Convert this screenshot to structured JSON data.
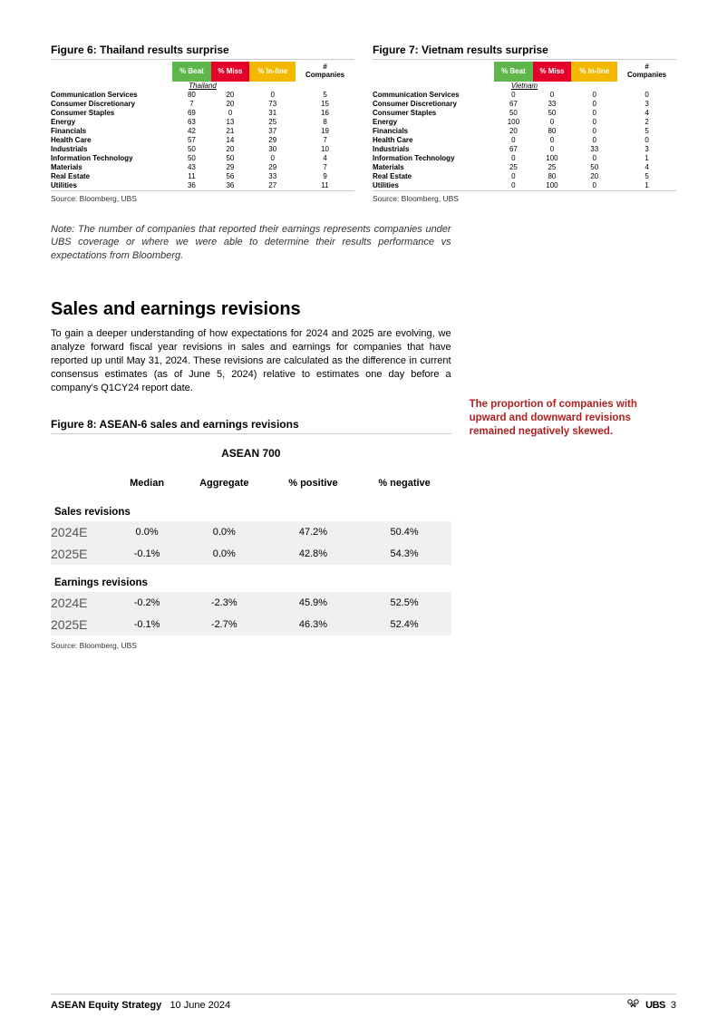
{
  "colors": {
    "beat": "#5fb64a",
    "miss": "#e4002b",
    "inline": "#f5b800",
    "callout": "#b02020",
    "shaded": "#f0f0f0"
  },
  "figure6": {
    "title": "Figure 6: Thailand results surprise",
    "region": "Thailand",
    "headers": {
      "beat": "% Beat",
      "miss": "% Miss",
      "inline": "% In-line",
      "companies": "# Companies"
    },
    "rows": [
      {
        "sector": "Communication Services",
        "beat": "80",
        "miss": "20",
        "inline": "0",
        "companies": "5"
      },
      {
        "sector": "Consumer Discretionary",
        "beat": "7",
        "miss": "20",
        "inline": "73",
        "companies": "15"
      },
      {
        "sector": "Consumer Staples",
        "beat": "69",
        "miss": "0",
        "inline": "31",
        "companies": "16"
      },
      {
        "sector": "Energy",
        "beat": "63",
        "miss": "13",
        "inline": "25",
        "companies": "8"
      },
      {
        "sector": "Financials",
        "beat": "42",
        "miss": "21",
        "inline": "37",
        "companies": "19"
      },
      {
        "sector": "Health Care",
        "beat": "57",
        "miss": "14",
        "inline": "29",
        "companies": "7"
      },
      {
        "sector": "Industrials",
        "beat": "50",
        "miss": "20",
        "inline": "30",
        "companies": "10"
      },
      {
        "sector": "Information Technology",
        "beat": "50",
        "miss": "50",
        "inline": "0",
        "companies": "4"
      },
      {
        "sector": "Materials",
        "beat": "43",
        "miss": "29",
        "inline": "29",
        "companies": "7"
      },
      {
        "sector": "Real Estate",
        "beat": "11",
        "miss": "56",
        "inline": "33",
        "companies": "9"
      },
      {
        "sector": "Utilities",
        "beat": "36",
        "miss": "36",
        "inline": "27",
        "companies": "11"
      }
    ],
    "source": "Source: Bloomberg, UBS"
  },
  "figure7": {
    "title": "Figure 7: Vietnam results surprise",
    "region": "Vietnam",
    "headers": {
      "beat": "% Beat",
      "miss": "% Miss",
      "inline": "% In-line",
      "companies": "# Companies"
    },
    "rows": [
      {
        "sector": "Communication Services",
        "beat": "0",
        "miss": "0",
        "inline": "0",
        "companies": "0"
      },
      {
        "sector": "Consumer Discretionary",
        "beat": "67",
        "miss": "33",
        "inline": "0",
        "companies": "3"
      },
      {
        "sector": "Consumer Staples",
        "beat": "50",
        "miss": "50",
        "inline": "0",
        "companies": "4"
      },
      {
        "sector": "Energy",
        "beat": "100",
        "miss": "0",
        "inline": "0",
        "companies": "2"
      },
      {
        "sector": "Financials",
        "beat": "20",
        "miss": "80",
        "inline": "0",
        "companies": "5"
      },
      {
        "sector": "Health Care",
        "beat": "0",
        "miss": "0",
        "inline": "0",
        "companies": "0"
      },
      {
        "sector": "Industrials",
        "beat": "67",
        "miss": "0",
        "inline": "33",
        "companies": "3"
      },
      {
        "sector": "Information Technology",
        "beat": "0",
        "miss": "100",
        "inline": "0",
        "companies": "1"
      },
      {
        "sector": "Materials",
        "beat": "25",
        "miss": "25",
        "inline": "50",
        "companies": "4"
      },
      {
        "sector": "Real Estate",
        "beat": "0",
        "miss": "80",
        "inline": "20",
        "companies": "5"
      },
      {
        "sector": "Utilities",
        "beat": "0",
        "miss": "100",
        "inline": "0",
        "companies": "1"
      }
    ],
    "source": "Source: Bloomberg, UBS"
  },
  "note": "Note: The number of companies that reported their earnings represents companies under UBS coverage or where we were able to determine their results performance vs expectations from Bloomberg.",
  "section": {
    "heading": "Sales and earnings revisions",
    "body": "To gain a deeper understanding of how expectations for 2024 and 2025 are evolving, we analyze forward fiscal year revisions in sales and earnings for companies that have reported up until May 31, 2024. These revisions are calculated as the difference in current consensus estimates (as of June 5, 2024) relative to estimates one day before a company's Q1CY24 report date."
  },
  "figure8": {
    "title": "Figure 8: ASEAN-6 sales and earnings revisions",
    "super_head": "ASEAN 700",
    "callout": "The proportion of companies with upward and downward revisions remained negatively skewed.",
    "columns": {
      "blank": "",
      "median": "Median",
      "aggregate": "Aggregate",
      "positive": "% positive",
      "negative": "% negative"
    },
    "sections": [
      {
        "label": "Sales revisions",
        "rows": [
          {
            "year": "2024E",
            "median": "0.0%",
            "aggregate": "0.0%",
            "positive": "47.2%",
            "negative": "50.4%"
          },
          {
            "year": "2025E",
            "median": "-0.1%",
            "aggregate": "0.0%",
            "positive": "42.8%",
            "negative": "54.3%"
          }
        ]
      },
      {
        "label": "Earnings revisions",
        "rows": [
          {
            "year": "2024E",
            "median": "-0.2%",
            "aggregate": "-2.3%",
            "positive": "45.9%",
            "negative": "52.5%"
          },
          {
            "year": "2025E",
            "median": "-0.1%",
            "aggregate": "-2.7%",
            "positive": "46.3%",
            "negative": "52.4%"
          }
        ]
      }
    ],
    "source": "Source: Bloomberg, UBS"
  },
  "footer": {
    "title": "ASEAN Equity Strategy",
    "date": "10 June 2024",
    "brand": "UBS",
    "page": "3"
  }
}
